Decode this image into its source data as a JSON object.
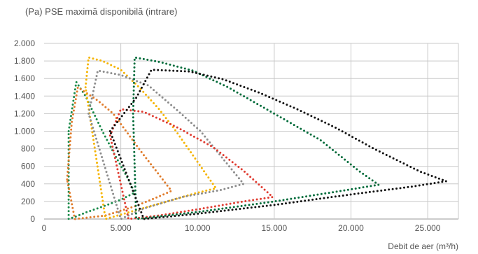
{
  "chart_data": {
    "type": "line",
    "title": "",
    "ylabel": "(Pa) PSE maximă disponibilă (intrare)",
    "xlabel": "Debit de aer (m³/h)",
    "xlim": [
      0,
      27000
    ],
    "ylim": [
      0,
      2000
    ],
    "x_ticks": [
      0,
      5000,
      10000,
      15000,
      20000,
      25000
    ],
    "x_tick_labels": [
      "0",
      "5.000",
      "10.000",
      "15.000",
      "20.000",
      "25.000"
    ],
    "y_ticks": [
      0,
      200,
      400,
      600,
      800,
      1000,
      1200,
      1400,
      1600,
      1800,
      2000
    ],
    "y_tick_labels": [
      "0",
      "200",
      "400",
      "600",
      "800",
      "1.000",
      "1.200",
      "1.400",
      "1.600",
      "1.800",
      "2.000"
    ],
    "grid": "vertical-and-horizontal",
    "legend": "none",
    "series": [
      {
        "color": "#1a8a4a",
        "points": [
          [
            1600,
            1000
          ],
          [
            2100,
            1560
          ],
          [
            2700,
            1400
          ],
          [
            3800,
            1000
          ],
          [
            4700,
            700
          ],
          [
            5500,
            450
          ],
          [
            5900,
            300
          ],
          [
            5000,
            220
          ],
          [
            3800,
            140
          ],
          [
            2800,
            80
          ],
          [
            2100,
            30
          ],
          [
            1600,
            0
          ]
        ]
      },
      {
        "color": "#e07b2a",
        "points": [
          [
            1500,
            450
          ],
          [
            1800,
            1100
          ],
          [
            2200,
            1500
          ],
          [
            3500,
            1350
          ],
          [
            4500,
            1200
          ],
          [
            6400,
            750
          ],
          [
            7600,
            480
          ],
          [
            8300,
            320
          ],
          [
            7400,
            250
          ],
          [
            6000,
            150
          ],
          [
            4000,
            40
          ],
          [
            2000,
            0
          ]
        ]
      },
      {
        "color": "#f5b400",
        "points": [
          [
            2700,
            1500
          ],
          [
            2900,
            1840
          ],
          [
            3800,
            1800
          ],
          [
            5000,
            1700
          ],
          [
            6200,
            1500
          ],
          [
            7500,
            1250
          ],
          [
            8600,
            1000
          ],
          [
            9800,
            700
          ],
          [
            11200,
            350
          ],
          [
            10000,
            300
          ],
          [
            8000,
            200
          ],
          [
            6000,
            100
          ],
          [
            4000,
            0
          ]
        ]
      },
      {
        "color": "#8c8c8c",
        "points": [
          [
            2900,
            1200
          ],
          [
            3500,
            1690
          ],
          [
            5000,
            1640
          ],
          [
            6800,
            1520
          ],
          [
            8600,
            1250
          ],
          [
            10200,
            1000
          ],
          [
            11600,
            700
          ],
          [
            13000,
            400
          ],
          [
            11500,
            330
          ],
          [
            9000,
            250
          ],
          [
            6500,
            120
          ],
          [
            5000,
            0
          ]
        ]
      },
      {
        "color": "#e03c31",
        "points": [
          [
            4300,
            950
          ],
          [
            5000,
            1250
          ],
          [
            6500,
            1220
          ],
          [
            8600,
            1050
          ],
          [
            11000,
            820
          ],
          [
            13000,
            550
          ],
          [
            14900,
            250
          ],
          [
            13000,
            200
          ],
          [
            10000,
            110
          ],
          [
            7500,
            40
          ],
          [
            5500,
            0
          ]
        ]
      },
      {
        "color": "#006b3a",
        "points": [
          [
            5800,
            1200
          ],
          [
            5900,
            1840
          ],
          [
            7500,
            1790
          ],
          [
            9700,
            1690
          ],
          [
            12000,
            1500
          ],
          [
            15000,
            1200
          ],
          [
            18000,
            900
          ],
          [
            20500,
            550
          ],
          [
            21800,
            390
          ],
          [
            19000,
            310
          ],
          [
            15000,
            200
          ],
          [
            10000,
            80
          ],
          [
            6000,
            0
          ]
        ]
      },
      {
        "color": "#111111",
        "points": [
          [
            4300,
            1000
          ],
          [
            5200,
            1200
          ],
          [
            6000,
            1380
          ],
          [
            7000,
            1700
          ],
          [
            9500,
            1680
          ],
          [
            11700,
            1590
          ],
          [
            14000,
            1440
          ],
          [
            16500,
            1250
          ],
          [
            19000,
            1040
          ],
          [
            21500,
            800
          ],
          [
            24500,
            540
          ],
          [
            26200,
            430
          ],
          [
            24000,
            370
          ],
          [
            20000,
            280
          ],
          [
            15000,
            160
          ],
          [
            10000,
            60
          ],
          [
            6500,
            0
          ]
        ]
      }
    ]
  }
}
